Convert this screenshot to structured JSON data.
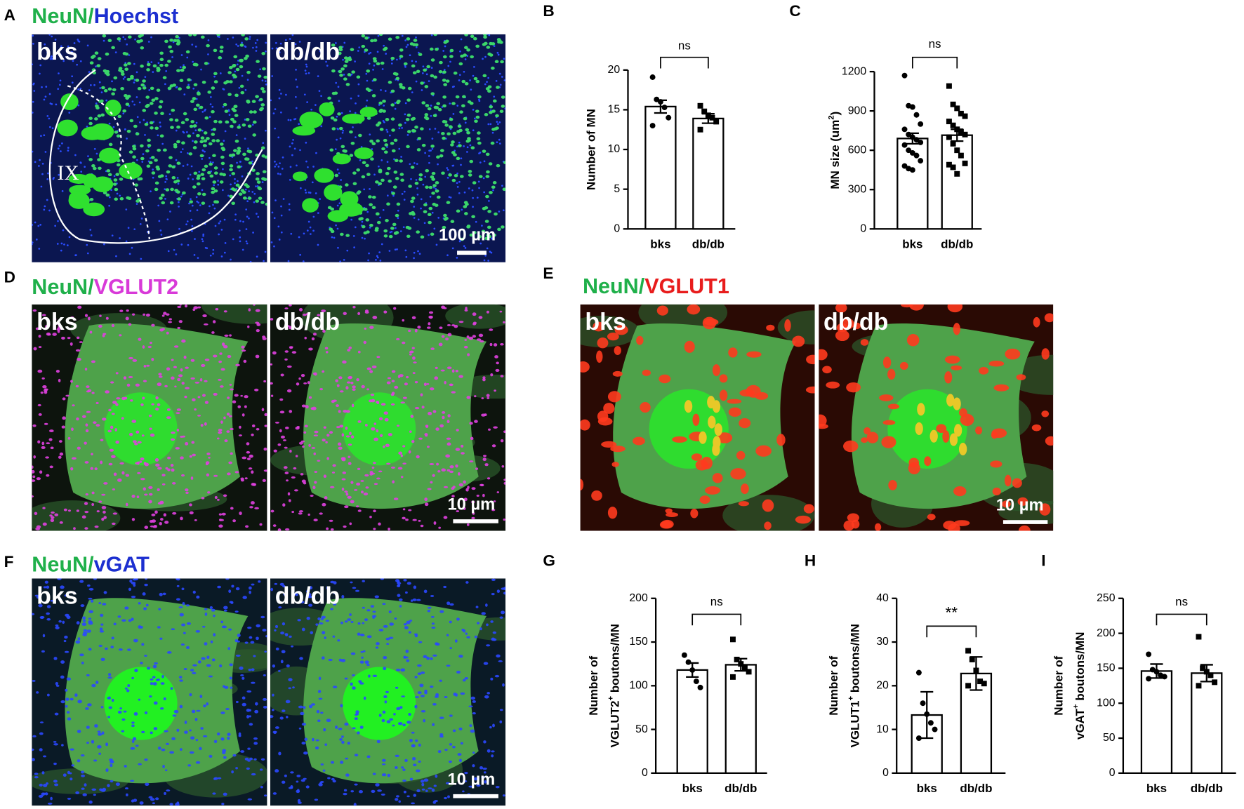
{
  "figure": {
    "panels": [
      {
        "letter": "A",
        "stain": [
          "NeuN/",
          "Hoechst"
        ],
        "stain_colors": [
          "#1fb04a",
          "#1c2fd0"
        ],
        "groups": [
          "bks",
          "db/db"
        ],
        "scale_bar": "100 µm",
        "region": "IX"
      },
      {
        "letter": "D",
        "stain": [
          "NeuN/",
          "VGLUT2"
        ],
        "stain_colors": [
          "#1fb04a",
          "#d83ad8"
        ],
        "groups": [
          "bks",
          "db/db"
        ],
        "scale_bar": "10 µm"
      },
      {
        "letter": "E",
        "stain": [
          "NeuN/",
          "VGLUT1"
        ],
        "stain_colors": [
          "#1fb04a",
          "#e81c1c"
        ],
        "groups": [
          "bks",
          "db/db"
        ],
        "scale_bar": "10 µm"
      },
      {
        "letter": "F",
        "stain": [
          "NeuN/",
          "vGAT"
        ],
        "stain_colors": [
          "#1fb04a",
          "#1c2fd0"
        ],
        "groups": [
          "bks",
          "db/db"
        ],
        "scale_bar": "10 µm"
      }
    ]
  },
  "chart_data": [
    {
      "type": "bar",
      "panel": "B",
      "ylabel": [
        [
          "Number of MN"
        ]
      ],
      "categories": [
        "bks",
        "db/db"
      ],
      "values": [
        15.4,
        13.9
      ],
      "errors": [
        0.8,
        0.6
      ],
      "points": [
        [
          19.1,
          16.3,
          16,
          15.3,
          14,
          13
        ],
        [
          15.5,
          14.8,
          14.3,
          14,
          13.5,
          12.5
        ]
      ],
      "ylim": [
        0,
        20
      ],
      "yticks": [
        0,
        5,
        10,
        15,
        20
      ],
      "significance": "ns",
      "color": "#000000"
    },
    {
      "type": "bar",
      "panel": "C",
      "ylabel": [
        [
          "MN size (um",
          "2",
          ")"
        ]
      ],
      "categories": [
        "bks",
        "db/db"
      ],
      "values": [
        690,
        715
      ],
      "errors": [
        40,
        45
      ],
      "points": [
        [
          1170,
          940,
          930,
          870,
          800,
          760,
          720,
          700,
          680,
          660,
          640,
          600,
          580,
          560,
          520,
          480,
          460,
          450
        ],
        [
          1090,
          950,
          920,
          880,
          860,
          820,
          790,
          760,
          740,
          720,
          700,
          650,
          600,
          560,
          500,
          490,
          470,
          420
        ]
      ],
      "ylim": [
        0,
        1200
      ],
      "yticks": [
        0,
        300,
        600,
        900,
        1200
      ],
      "significance": "ns",
      "color": "#000000"
    },
    {
      "type": "bar",
      "panel": "G",
      "ylabel": [
        [
          "Number of"
        ],
        [
          "VGLUT2",
          "+",
          " boutons/MN"
        ]
      ],
      "categories": [
        "bks",
        "db/db"
      ],
      "values": [
        118,
        124
      ],
      "errors": [
        8,
        7
      ],
      "points": [
        [
          135,
          127,
          118,
          105,
          98
        ],
        [
          153,
          130,
          125,
          120,
          116,
          110
        ]
      ],
      "ylim": [
        0,
        200
      ],
      "yticks": [
        0,
        50,
        100,
        150,
        200
      ],
      "significance": "ns",
      "color": "#000000"
    },
    {
      "type": "bar",
      "panel": "H",
      "ylabel": [
        [
          "Number of"
        ],
        [
          "VGLUT1",
          "+",
          " boutons/MN"
        ]
      ],
      "categories": [
        "bks",
        "db/db"
      ],
      "values": [
        13.3,
        22.8
      ],
      "errors": [
        5.3,
        3.8
      ],
      "points": [
        [
          23,
          16,
          13.5,
          11.5,
          10,
          8
        ],
        [
          28,
          26,
          23.5,
          21,
          20.5,
          20
        ]
      ],
      "ylim": [
        0,
        40
      ],
      "yticks": [
        0,
        10,
        20,
        30,
        40
      ],
      "significance": "**",
      "color": "#000000"
    },
    {
      "type": "bar",
      "panel": "I",
      "ylabel": [
        [
          "Number of"
        ],
        [
          "vGAT",
          "+",
          " boutons/MN"
        ]
      ],
      "categories": [
        "bks",
        "db/db"
      ],
      "values": [
        146,
        143
      ],
      "errors": [
        10,
        12
      ],
      "points": [
        [
          170,
          148,
          145,
          140,
          138,
          135
        ],
        [
          195,
          150,
          145,
          140,
          130,
          125
        ]
      ],
      "ylim": [
        0,
        250
      ],
      "yticks": [
        0,
        50,
        100,
        150,
        200,
        250
      ],
      "significance": "ns",
      "color": "#000000"
    }
  ]
}
